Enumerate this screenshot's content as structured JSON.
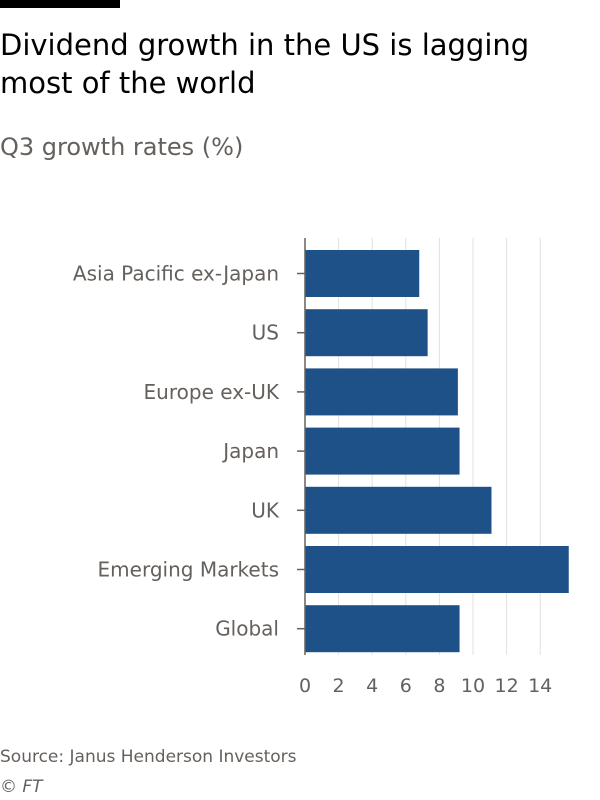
{
  "header": {
    "title": "Dividend growth in the US is lagging most of the world",
    "subtitle": "Q3 growth rates (%)"
  },
  "footer": {
    "source": "Source: Janus Henderson Investors",
    "copyright": "© FT"
  },
  "colors": {
    "bar": "#1f5189",
    "grid": "#e5e0da",
    "axis": "#66605c",
    "text_muted": "#66605c"
  },
  "chart_data": {
    "type": "bar",
    "orientation": "horizontal",
    "categories": [
      "Asia Pacific ex-Japan",
      "US",
      "Europe ex-UK",
      "Japan",
      "UK",
      "Emerging Markets",
      "Global"
    ],
    "values": [
      6.8,
      7.3,
      9.1,
      9.2,
      11.1,
      15.7,
      9.2
    ],
    "xticks": [
      0,
      2,
      4,
      6,
      8,
      10,
      12,
      14
    ],
    "xlim": [
      0,
      16
    ],
    "grid": true
  }
}
